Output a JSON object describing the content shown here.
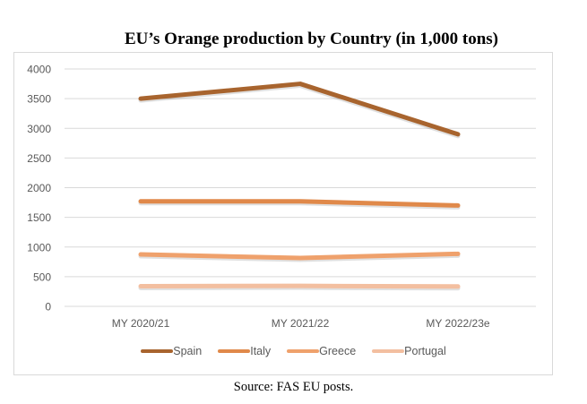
{
  "chart_data": {
    "type": "line",
    "title": "EU’s Orange production by Country (in 1,000 tons)",
    "xlabel": "",
    "ylabel": "",
    "categories": [
      "MY 2020/21",
      "MY 2021/22",
      "MY 2022/23e"
    ],
    "ylim": [
      0,
      4000
    ],
    "yticks": [
      0,
      500,
      1000,
      1500,
      2000,
      2500,
      3000,
      3500,
      4000
    ],
    "grid": true,
    "legend_position": "bottom",
    "series": [
      {
        "name": "Spain",
        "color": "#A8642E",
        "values": [
          3500,
          3750,
          2900
        ]
      },
      {
        "name": "Italy",
        "color": "#E0894A",
        "values": [
          1770,
          1770,
          1700
        ]
      },
      {
        "name": "Greece",
        "color": "#EFA16C",
        "values": [
          875,
          815,
          885
        ]
      },
      {
        "name": "Portugal",
        "color": "#F3BFA0",
        "values": [
          340,
          345,
          335
        ]
      }
    ],
    "source": "Source: FAS EU posts."
  }
}
